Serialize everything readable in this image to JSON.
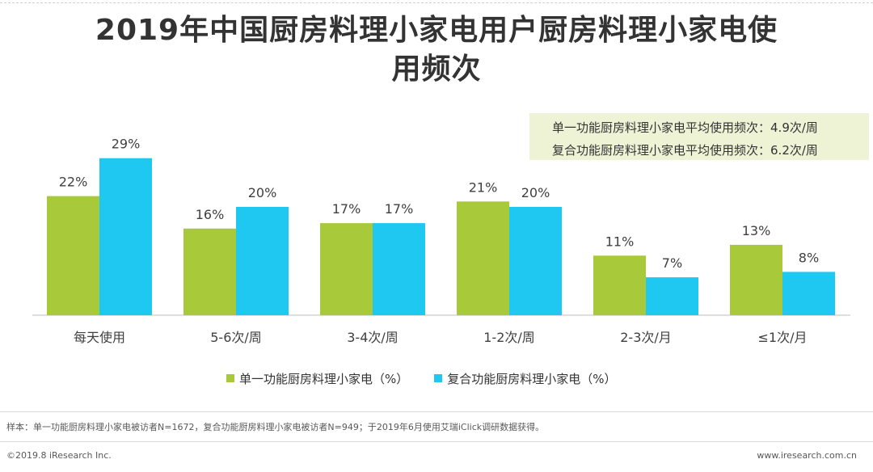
{
  "title_line1": "2019年中国厨房料理小家电用户厨房料理小家电使",
  "title_line2": "用频次",
  "averages": {
    "single": "单一功能厨房料理小家电平均使用频次：4.9次/周",
    "compound": "复合功能厨房料理小家电平均使用频次：6.2次/周"
  },
  "chart_data": {
    "type": "bar",
    "categories": [
      "每天使用",
      "5-6次/周",
      "3-4次/周",
      "1-2次/周",
      "2-3次/月",
      "≤1次/月"
    ],
    "series": [
      {
        "name": "单一功能厨房料理小家电（%）",
        "values": [
          22,
          16,
          17,
          21,
          11,
          13
        ],
        "labels": [
          "22%",
          "16%",
          "17%",
          "21%",
          "11%",
          "13%"
        ],
        "color": "#a8c93a"
      },
      {
        "name": "复合功能厨房料理小家电（%）",
        "values": [
          29,
          20,
          17,
          20,
          7,
          8
        ],
        "labels": [
          "29%",
          "20%",
          "17%",
          "20%",
          "7%",
          "8%"
        ],
        "color": "#1ec8f0"
      }
    ],
    "ylim": [
      0,
      30
    ],
    "grid": false,
    "legend": "bottom",
    "xlabel": "",
    "ylabel": ""
  },
  "footer": {
    "sample": "样本：单一功能厨房料理小家电被访者N=1672，复合功能厨房料理小家电被访者N=949；于2019年6月使用艾瑞iClick调研数据获得。",
    "copyright": "©2019.8 iResearch Inc.",
    "website": "www.iresearch.com.cn"
  }
}
